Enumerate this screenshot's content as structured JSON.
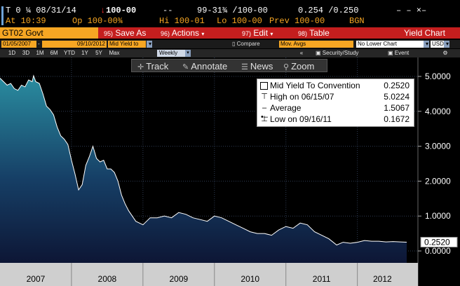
{
  "ticker": {
    "symbol": "T 0 ¼ 08/31/14",
    "arrow": "↓",
    "price": "100-00",
    "dashes": "--",
    "bid_ask": "99-31¾ /100-00",
    "yields": "0.254 /0.250",
    "close_x": "– – ×–"
  },
  "quote": {
    "at": "At 10:39",
    "op": "Op 100-00¾",
    "hi": "Hi 100-01",
    "lo": "Lo 100-00",
    "prev": "Prev 100-00",
    "source": "BGN"
  },
  "menubar": {
    "security": "GT02 Govt",
    "save_num": "95)",
    "save_label": "Save As",
    "actions_num": "96)",
    "actions_label": "Actions",
    "edit_num": "97)",
    "edit_label": "Edit",
    "table_num": "98)",
    "table_label": "Table",
    "title": "Yield Chart"
  },
  "controls": {
    "start_date": "01/05/2007",
    "end_date": "09/10/2012",
    "field": "Mid Yield to",
    "compare": "Compare",
    "mov_avgs": "Mov. Avgs",
    "lower_chart": "No Lower Chart",
    "currency": "USD"
  },
  "timeframes": [
    "1D",
    "3D",
    "1M",
    "6M",
    "YTD",
    "1Y",
    "5Y",
    "Max"
  ],
  "frequency": "Weekly",
  "security_study": "Security/Study",
  "event": "Event",
  "toolbar": {
    "track": "Track",
    "annotate": "Annotate",
    "news": "News",
    "zoom": "Zoom"
  },
  "legend": {
    "title": "Mid Yield To Convention",
    "title_value": "0.2520",
    "high_label": "High on 06/15/07",
    "high_value": "5.0224",
    "avg_label": "Average",
    "avg_value": "1.5067",
    "low_label": "Low on 09/16/11",
    "low_value": "0.1672"
  },
  "colors": {
    "amber": "#f6a623",
    "menu_red": "#c41e1e",
    "area_top": "#2a8da0",
    "area_bottom": "#101a3c"
  },
  "chart_data": {
    "type": "area",
    "title": "",
    "xlabel": "",
    "ylabel": "",
    "ylim": [
      0,
      5.25
    ],
    "yticks": [
      "5.0000",
      "4.0000",
      "3.0000",
      "2.0000",
      "1.0000",
      "0.0000"
    ],
    "ytick_values": [
      5,
      4,
      3,
      2,
      1,
      0
    ],
    "xlim": [
      2007.0,
      2012.7
    ],
    "x_labels": [
      "2007",
      "2008",
      "2009",
      "2010",
      "2011",
      "2012"
    ],
    "x_label_positions": [
      2007.5,
      2008.5,
      2009.5,
      2010.5,
      2011.5,
      2012.35
    ],
    "last_value_label": "0.2520",
    "last_value": 0.252,
    "series": [
      {
        "x": [
          2007.0,
          2007.05,
          2007.1,
          2007.15,
          2007.2,
          2007.25,
          2007.3,
          2007.35,
          2007.4,
          2007.45,
          2007.47,
          2007.5,
          2007.55,
          2007.6,
          2007.65,
          2007.7,
          2007.75,
          2007.8,
          2007.85,
          2007.9,
          2007.95,
          2008.0,
          2008.05,
          2008.1,
          2008.15,
          2008.2,
          2008.25,
          2008.3,
          2008.35,
          2008.4,
          2008.45,
          2008.5,
          2008.55,
          2008.6,
          2008.65,
          2008.7,
          2008.75,
          2008.8,
          2008.85,
          2008.9,
          2008.95,
          2009.0,
          2009.1,
          2009.2,
          2009.3,
          2009.4,
          2009.5,
          2009.6,
          2009.7,
          2009.8,
          2009.9,
          2010.0,
          2010.1,
          2010.2,
          2010.3,
          2010.4,
          2010.5,
          2010.6,
          2010.7,
          2010.8,
          2010.9,
          2011.0,
          2011.1,
          2011.2,
          2011.3,
          2011.4,
          2011.5,
          2011.6,
          2011.71,
          2011.8,
          2011.9,
          2012.0,
          2012.1,
          2012.2,
          2012.3,
          2012.4,
          2012.5,
          2012.6,
          2012.69
        ],
        "y": [
          4.95,
          4.85,
          4.75,
          4.8,
          4.65,
          4.6,
          4.75,
          4.7,
          4.9,
          4.85,
          5.02,
          4.85,
          4.8,
          4.5,
          4.15,
          4.05,
          3.9,
          3.55,
          3.3,
          3.2,
          3.05,
          2.6,
          2.2,
          1.75,
          1.9,
          2.45,
          2.7,
          3.0,
          2.65,
          2.55,
          2.6,
          2.35,
          2.35,
          2.25,
          2.0,
          1.6,
          1.35,
          1.15,
          1.0,
          0.85,
          0.8,
          0.75,
          0.95,
          0.95,
          1.0,
          0.95,
          1.1,
          1.05,
          0.95,
          0.9,
          0.85,
          1.0,
          0.95,
          0.85,
          0.75,
          0.65,
          0.55,
          0.5,
          0.5,
          0.45,
          0.6,
          0.7,
          0.65,
          0.8,
          0.75,
          0.55,
          0.45,
          0.35,
          0.17,
          0.25,
          0.22,
          0.25,
          0.3,
          0.28,
          0.28,
          0.26,
          0.27,
          0.26,
          0.252
        ]
      }
    ]
  }
}
